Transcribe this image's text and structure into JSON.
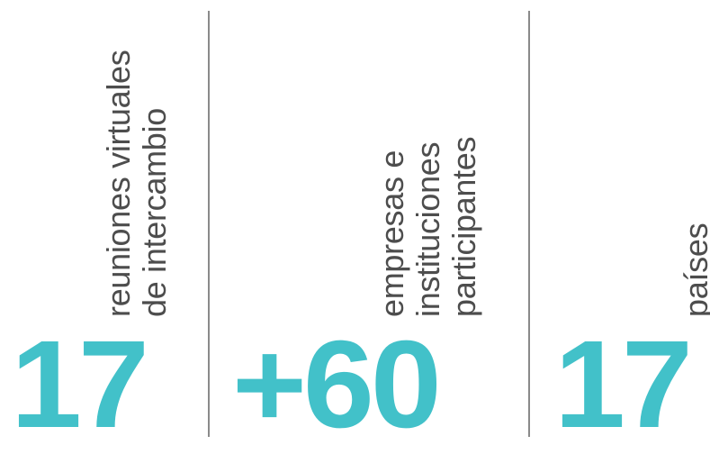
{
  "stats": [
    {
      "number": "17",
      "label_lines": [
        "reuniones virtuales",
        "de intercambio"
      ]
    },
    {
      "number": "+60",
      "label_lines": [
        "empresas e",
        "instituciones",
        "participantes"
      ]
    },
    {
      "number": "17",
      "label_lines": [
        "países"
      ]
    }
  ],
  "colors": {
    "number": "#42c1c9",
    "label": "#4d4d4d",
    "divider": "#8a8a8a",
    "background": "#ffffff"
  }
}
